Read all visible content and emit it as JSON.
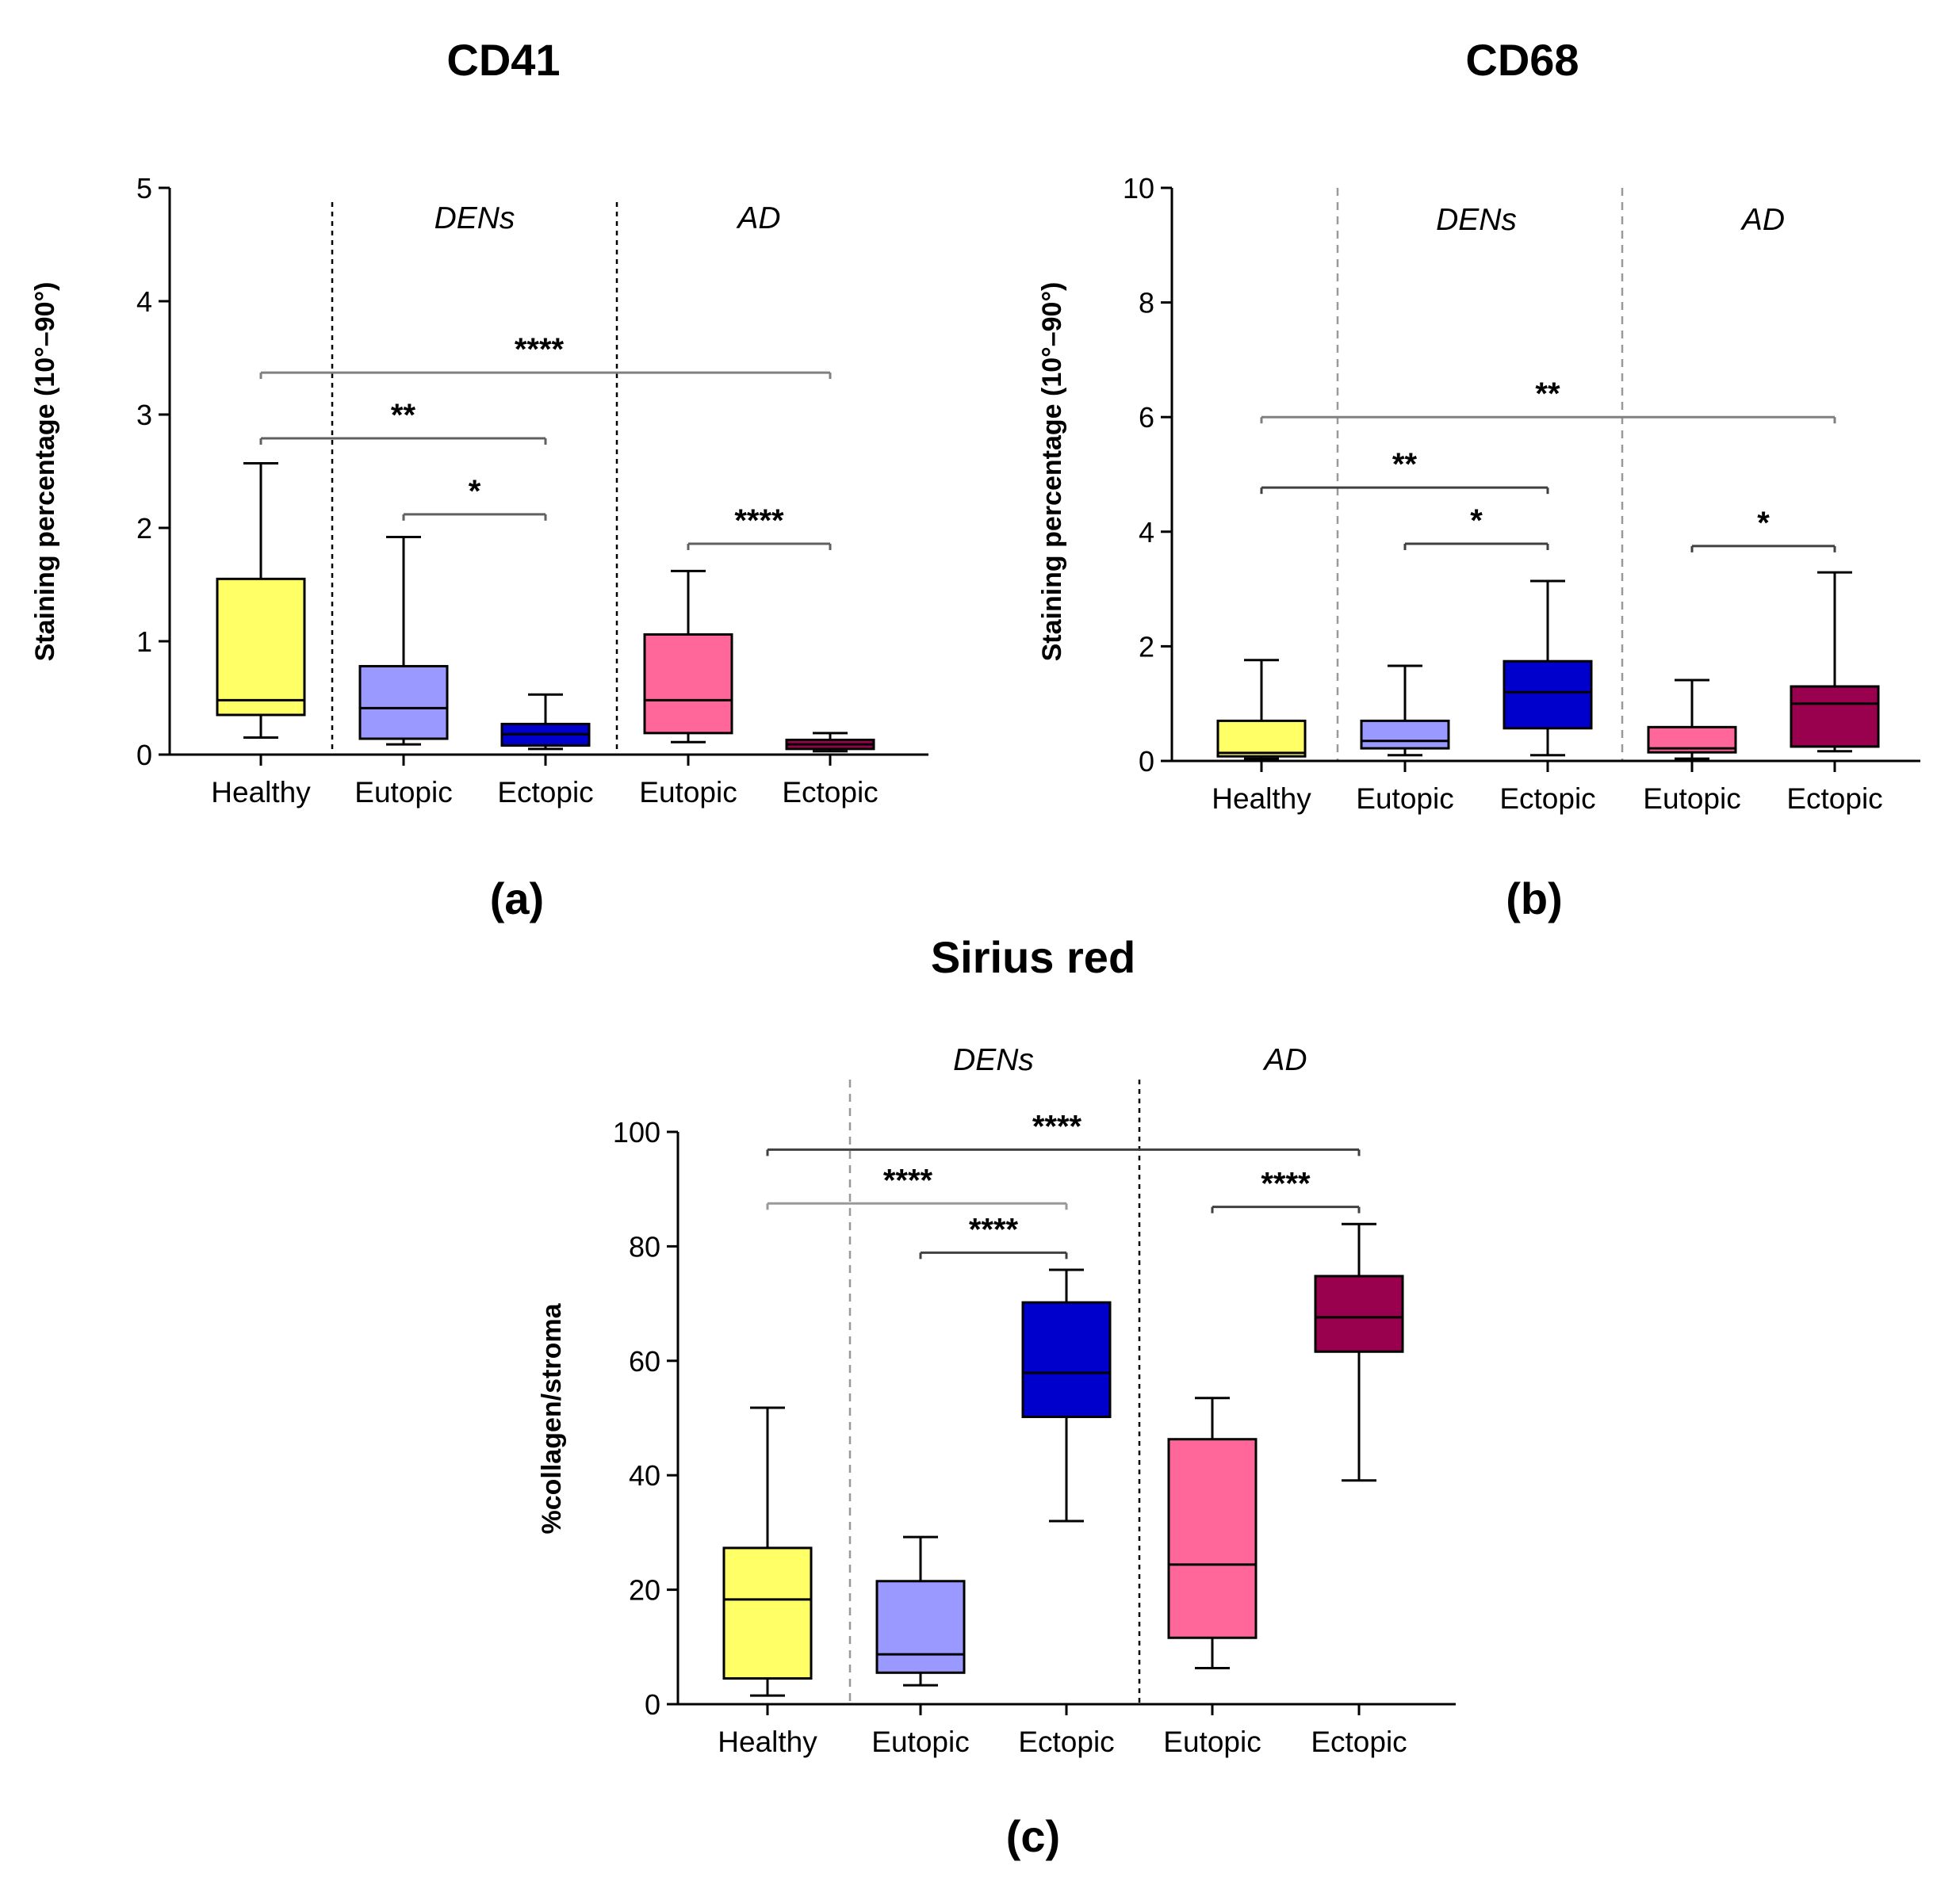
{
  "chart_data": [
    {
      "id": "a",
      "type": "box",
      "title": "CD41",
      "caption": "(a)",
      "ylabel": "Staining percentage (10°–90°)",
      "ylim": [
        0,
        5
      ],
      "yticks": [
        "0",
        "1",
        "2",
        "3",
        "4",
        "5"
      ],
      "categories": [
        "Healthy",
        "Eutopic",
        "Ectopic",
        "Eutopic",
        "Ectopic"
      ],
      "groups": [
        {
          "label": "DENs",
          "categories": [
            1,
            2
          ]
        },
        {
          "label": "AD",
          "categories": [
            3,
            4
          ]
        }
      ],
      "colors": [
        "#ffff66",
        "#9999ff",
        "#0000cc",
        "#ff6699",
        "#99004d"
      ],
      "boxes": [
        {
          "whisker_low": 0.15,
          "q1": 0.35,
          "median": 0.48,
          "q3": 1.55,
          "whisker_high": 2.57
        },
        {
          "whisker_low": 0.09,
          "q1": 0.14,
          "median": 0.41,
          "q3": 0.78,
          "whisker_high": 1.92
        },
        {
          "whisker_low": 0.05,
          "q1": 0.08,
          "median": 0.18,
          "q3": 0.27,
          "whisker_high": 0.53
        },
        {
          "whisker_low": 0.11,
          "q1": 0.19,
          "median": 0.48,
          "q3": 1.06,
          "whisker_high": 1.62
        },
        {
          "whisker_low": 0.03,
          "q1": 0.05,
          "median": 0.09,
          "q3": 0.13,
          "whisker_high": 0.19
        }
      ],
      "significance": [
        {
          "from": 0,
          "to": 4,
          "y": 3.37,
          "label": "****"
        },
        {
          "from": 0,
          "to": 2,
          "y": 2.79,
          "label": "**"
        },
        {
          "from": 1,
          "to": 2,
          "y": 2.12,
          "label": "*"
        },
        {
          "from": 3,
          "to": 4,
          "y": 1.86,
          "label": "****"
        }
      ]
    },
    {
      "id": "b",
      "type": "box",
      "title": "CD68",
      "caption": "(b)",
      "ylabel": "Staining percentage (10°–90°)",
      "ylim": [
        0,
        10
      ],
      "yticks": [
        "0",
        "2",
        "4",
        "6",
        "8",
        "10"
      ],
      "categories": [
        "Healthy",
        "Eutopic",
        "Ectopic",
        "Eutopic",
        "Ectopic"
      ],
      "groups": [
        {
          "label": "DENs",
          "categories": [
            1,
            2
          ]
        },
        {
          "label": "AD",
          "categories": [
            3,
            4
          ]
        }
      ],
      "colors": [
        "#ffff66",
        "#9999ff",
        "#0000cc",
        "#ff6699",
        "#99004d"
      ],
      "boxes": [
        {
          "whisker_low": 0.04,
          "q1": 0.08,
          "median": 0.14,
          "q3": 0.7,
          "whisker_high": 1.76
        },
        {
          "whisker_low": 0.1,
          "q1": 0.22,
          "median": 0.35,
          "q3": 0.7,
          "whisker_high": 1.66
        },
        {
          "whisker_low": 0.1,
          "q1": 0.57,
          "median": 1.2,
          "q3": 1.74,
          "whisker_high": 3.14
        },
        {
          "whisker_low": 0.04,
          "q1": 0.15,
          "median": 0.22,
          "q3": 0.59,
          "whisker_high": 1.41
        },
        {
          "whisker_low": 0.17,
          "q1": 0.25,
          "median": 1.0,
          "q3": 1.3,
          "whisker_high": 3.29
        }
      ],
      "significance": [
        {
          "from": 0,
          "to": 4,
          "y": 6.0,
          "label": "**"
        },
        {
          "from": 0,
          "to": 2,
          "y": 4.77,
          "label": "**"
        },
        {
          "from": 1,
          "to": 2,
          "y": 3.79,
          "label": "*"
        },
        {
          "from": 3,
          "to": 4,
          "y": 3.75,
          "label": "*"
        }
      ]
    },
    {
      "id": "c",
      "type": "box",
      "title": "Sirius red",
      "caption": "(c)",
      "ylabel": "%collagen/stroma",
      "ylim": [
        0,
        100
      ],
      "yticks": [
        "0",
        "20",
        "40",
        "60",
        "80",
        "100"
      ],
      "categories": [
        "Healthy",
        "Eutopic",
        "Ectopic",
        "Eutopic",
        "Ectopic"
      ],
      "groups": [
        {
          "label": "DENs",
          "categories": [
            1,
            2
          ]
        },
        {
          "label": "AD",
          "categories": [
            3,
            4
          ]
        }
      ],
      "colors": [
        "#ffff66",
        "#9999ff",
        "#0000cc",
        "#ff6699",
        "#99004d"
      ],
      "boxes": [
        {
          "whisker_low": 1.5,
          "q1": 4.5,
          "median": 18.3,
          "q3": 27.3,
          "whisker_high": 51.8
        },
        {
          "whisker_low": 3.3,
          "q1": 5.5,
          "median": 8.7,
          "q3": 21.5,
          "whisker_high": 29.2
        },
        {
          "whisker_low": 32.0,
          "q1": 50.2,
          "median": 57.9,
          "q3": 70.2,
          "whisker_high": 75.9
        },
        {
          "whisker_low": 6.3,
          "q1": 11.6,
          "median": 24.4,
          "q3": 46.3,
          "whisker_high": 53.5
        },
        {
          "whisker_low": 39.1,
          "q1": 61.6,
          "median": 67.6,
          "q3": 74.8,
          "whisker_high": 83.9
        }
      ],
      "significance": [
        {
          "from": 0,
          "to": 4,
          "y": 96.9,
          "label": "****"
        },
        {
          "from": 0,
          "to": 2,
          "y": 87.5,
          "label": "****"
        },
        {
          "from": 1,
          "to": 2,
          "y": 78.9,
          "label": "****"
        },
        {
          "from": 3,
          "to": 4,
          "y": 86.9,
          "label": "****"
        }
      ]
    }
  ]
}
